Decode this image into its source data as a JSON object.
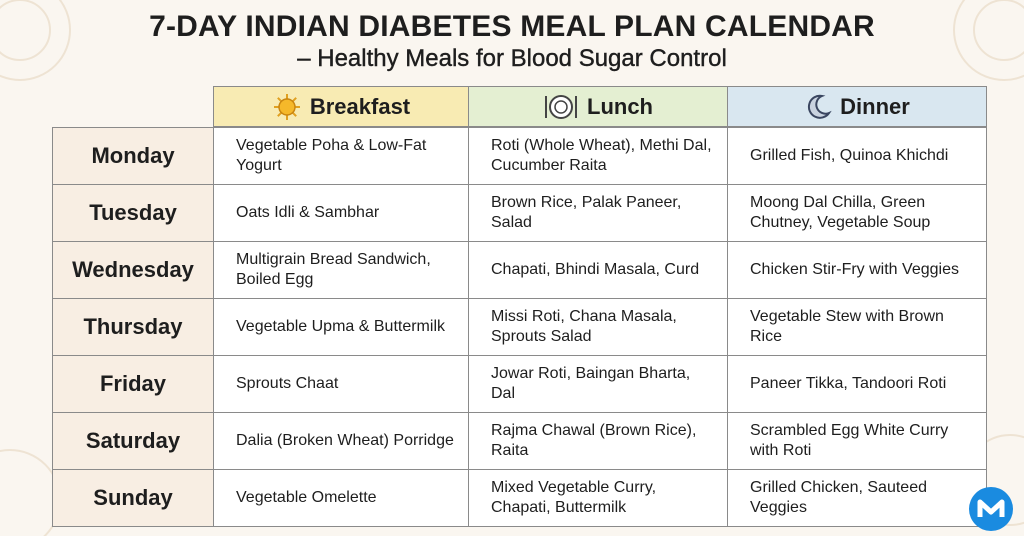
{
  "header": {
    "title": "7-DAY INDIAN DIABETES MEAL PLAN CALENDAR",
    "subtitle": "– Healthy Meals for Blood Sugar Control"
  },
  "table": {
    "columns": [
      "Breakfast",
      "Lunch",
      "Dinner"
    ],
    "rows": [
      [
        "Monday",
        "Vegetable Poha & Low-Fat Yogurt",
        "Roti (Whole Wheat), Methi Dal, Cucumber Raita",
        "Grilled Fish, Quinoa Khichdi"
      ],
      [
        "Tuesday",
        "Oats Idli & Sambhar",
        "Brown Rice, Palak Paneer, Salad",
        "Moong Dal Chilla, Green Chutney, Vegetable Soup"
      ],
      [
        "Wednesday",
        "Multigrain Bread Sandwich, Boiled Egg",
        "Chapati, Bhindi Masala, Curd",
        "Chicken Stir-Fry with Veggies"
      ],
      [
        "Thursday",
        "Vegetable Upma & Buttermilk",
        "Missi Roti, Chana Masala, Sprouts Salad",
        "Vegetable Stew with Brown Rice"
      ],
      [
        "Friday",
        "Sprouts Chaat",
        "Jowar Roti, Baingan Bharta, Dal",
        "Paneer Tikka, Tandoori Roti"
      ],
      [
        "Saturday",
        "Dalia (Broken Wheat) Porridge",
        "Rajma Chawal (Brown Rice), Raita",
        "Scrambled Egg White Curry with Roti"
      ],
      [
        "Sunday",
        "Vegetable Omelette",
        "Mixed Vegetable Curry, Chapati, Buttermilk",
        "Grilled Chicken, Sauteed Veggies"
      ]
    ]
  }
}
